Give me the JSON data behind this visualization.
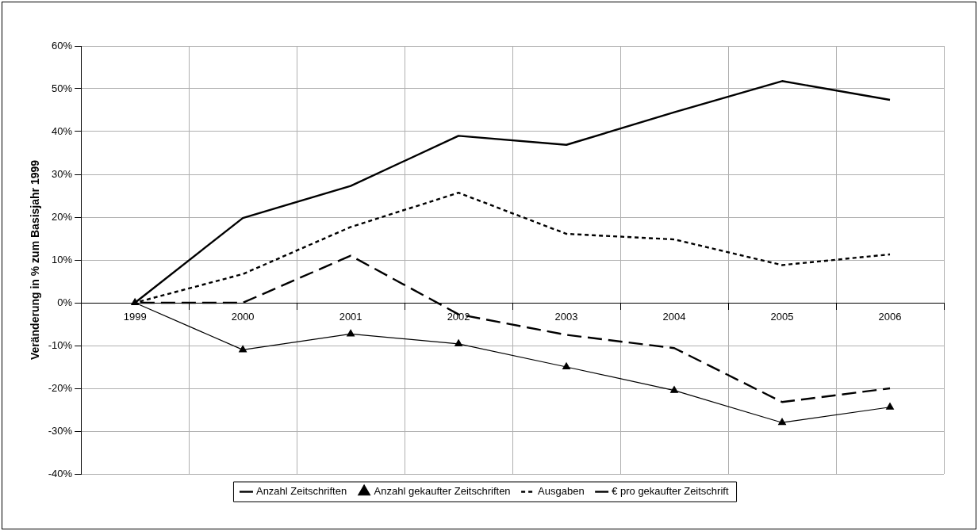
{
  "chart_data": {
    "type": "line",
    "ylabel": "Veränderung in % zum Basisjahr 1999",
    "categories": [
      "1999",
      "2000",
      "2001",
      "2002",
      "2003",
      "2004",
      "2005",
      "2006"
    ],
    "series": [
      {
        "name": "Anzahl Zeitschriften",
        "color": "#000000",
        "line_style": "dashed",
        "marker": "none",
        "values": [
          0,
          0,
          11,
          -2.7,
          -7.5,
          -10.6,
          -23.2,
          -20
        ]
      },
      {
        "name": "Anzahl gekaufter Zeitschriften",
        "color": "#000000",
        "line_style": "solid",
        "marker": "triangle",
        "values": [
          0,
          -11,
          -7.3,
          -9.6,
          -15,
          -20.5,
          -28,
          -24.4
        ]
      },
      {
        "name": "Ausgaben",
        "color": "#000000",
        "line_style": "dotted",
        "marker": "none",
        "values": [
          0,
          6.7,
          17.7,
          25.7,
          16.1,
          14.8,
          8.8,
          11.3
        ]
      },
      {
        "name": "€ pro gekaufter Zeitschrift",
        "color": "#000000",
        "line_style": "solid",
        "marker": "none",
        "values": [
          0,
          19.8,
          27.3,
          39,
          36.9,
          44.5,
          51.8,
          47.4
        ]
      }
    ],
    "ylim": [
      -40,
      60
    ],
    "yticks": [
      {
        "value": -40,
        "label": "-40%"
      },
      {
        "value": -30,
        "label": "-30%"
      },
      {
        "value": -20,
        "label": "-20%"
      },
      {
        "value": -10,
        "label": "-10%"
      },
      {
        "value": 0,
        "label": "0%"
      },
      {
        "value": 10,
        "label": "10%"
      },
      {
        "value": 20,
        "label": "20%"
      },
      {
        "value": 30,
        "label": "30%"
      },
      {
        "value": 40,
        "label": "40%"
      },
      {
        "value": 50,
        "label": "50%"
      },
      {
        "value": 60,
        "label": "60%"
      }
    ],
    "grid": true,
    "legend": "bottom"
  }
}
